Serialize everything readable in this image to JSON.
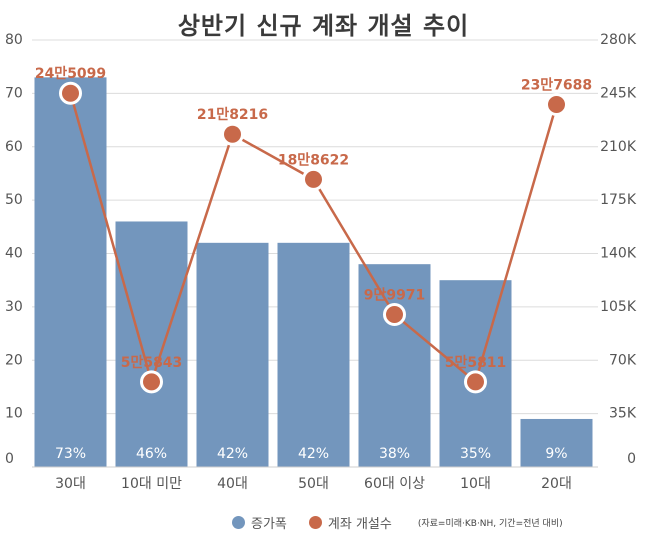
{
  "chart_data": {
    "type": "bar+line",
    "title": "상반기 신규 계좌 개설 추이",
    "categories": [
      "30대",
      "10대 미만",
      "40대",
      "50대",
      "60대 이상",
      "10대",
      "20대"
    ],
    "series": [
      {
        "name": "증가폭",
        "type": "bar",
        "axis": "left",
        "values": [
          73,
          46,
          42,
          42,
          38,
          35,
          9
        ],
        "labels": [
          "73%",
          "46%",
          "42%",
          "42%",
          "38%",
          "35%",
          "9%"
        ],
        "color": "#7396bd"
      },
      {
        "name": "계좌 개설수",
        "type": "line",
        "axis": "right",
        "values": [
          245099,
          55843,
          218216,
          188622,
          99971,
          55811,
          237688
        ],
        "labels": [
          "24만5099",
          "5만5843",
          "21만8216",
          "18만8622",
          "9만9971",
          "5만5811",
          "23만7688"
        ],
        "color": "#c8694a"
      }
    ],
    "left_axis": {
      "ylim": [
        0,
        80
      ],
      "ticks": [
        "0",
        "10",
        "20",
        "30",
        "40",
        "50",
        "60",
        "70",
        "80"
      ]
    },
    "right_axis": {
      "ylim": [
        0,
        280000
      ],
      "ticks": [
        "0",
        "35K",
        "70K",
        "105K",
        "140K",
        "175K",
        "210K",
        "245K",
        "280K"
      ]
    },
    "grid": true,
    "legend_position": "bottom",
    "source_note": "(자료=미래·KB·NH, 기간=전년 대비)"
  }
}
